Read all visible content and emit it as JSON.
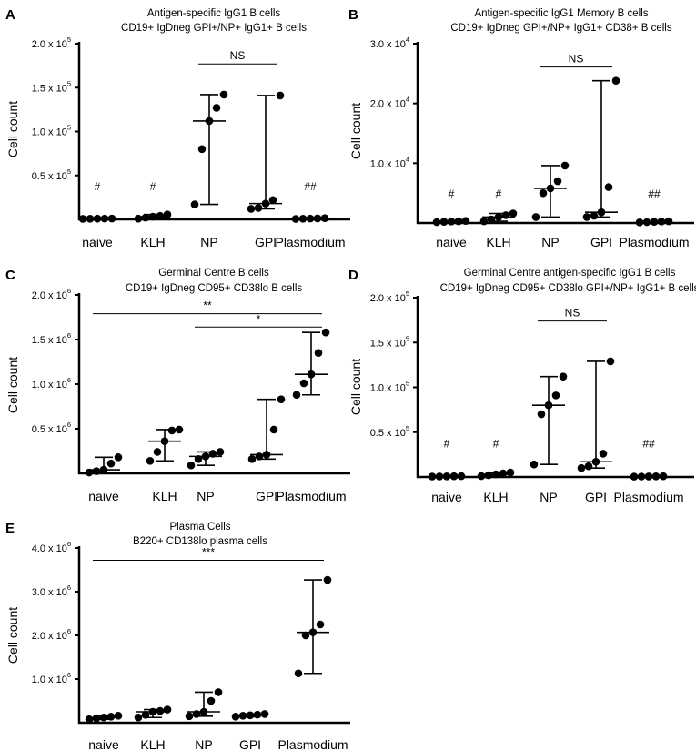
{
  "chart_data": [
    {
      "panel": "A",
      "type": "scatter",
      "title": [
        "Antigen-specific IgG1 B cells",
        "CD19+ IgDneg GPI+/NP+ IgG1+ B cells"
      ],
      "ylabel": "Cell count",
      "categories": [
        "naive",
        "KLH",
        "NP",
        "GPI",
        "Plasmodium"
      ],
      "ylim": [
        0,
        200000
      ],
      "yticks": [
        {
          "value": 50000,
          "mantissa": "0.5 x 10",
          "exp": "5"
        },
        {
          "value": 100000,
          "mantissa": "1.0 x 10",
          "exp": "5"
        },
        {
          "value": 150000,
          "mantissa": "1.5 x 10",
          "exp": "5"
        },
        {
          "value": 200000,
          "mantissa": "2.0 x 10",
          "exp": "5"
        }
      ],
      "points": [
        [
          600,
          700,
          800,
          900,
          1000
        ],
        [
          800,
          2000,
          3000,
          4000,
          5500
        ],
        [
          17000,
          80000,
          112000,
          127000,
          142000
        ],
        [
          12000,
          13000,
          18000,
          22000,
          141000
        ],
        [
          500,
          700,
          900,
          1100,
          1400
        ]
      ],
      "annotations": [
        {
          "category": 0,
          "text": "#",
          "y": 33000
        },
        {
          "category": 1,
          "text": "#",
          "y": 33000
        },
        {
          "category": 4,
          "text": "##",
          "y": 33000
        }
      ],
      "significance": [
        {
          "from": 2,
          "to": 3,
          "text": "NS",
          "y": 177000
        }
      ]
    },
    {
      "panel": "B",
      "type": "scatter",
      "title": [
        "Antigen-specific IgG1 Memory B cells",
        "CD19+ IgDneg GPI+/NP+ IgG1+ CD38+ B cells"
      ],
      "ylabel": "Cell count",
      "categories": [
        "naive",
        "KLH",
        "NP",
        "GPI",
        "Plasmodium"
      ],
      "ylim": [
        0,
        30000
      ],
      "yticks": [
        {
          "value": 10000,
          "mantissa": "1.0 x 10",
          "exp": "4"
        },
        {
          "value": 20000,
          "mantissa": "2.0 x 10",
          "exp": "4"
        },
        {
          "value": 30000,
          "mantissa": "3.0 x 10",
          "exp": "4"
        }
      ],
      "points": [
        [
          150,
          200,
          250,
          300,
          350
        ],
        [
          300,
          600,
          1000,
          1300,
          1600
        ],
        [
          1000,
          5000,
          5800,
          7000,
          9600
        ],
        [
          1000,
          1200,
          1800,
          6000,
          23800
        ],
        [
          100,
          150,
          200,
          250,
          300
        ]
      ],
      "annotations": [
        {
          "category": 0,
          "text": "#",
          "y": 4300
        },
        {
          "category": 1,
          "text": "#",
          "y": 4300
        },
        {
          "category": 4,
          "text": "##",
          "y": 4300
        }
      ],
      "significance": [
        {
          "from": 2,
          "to": 3,
          "text": "NS",
          "y": 26100
        }
      ]
    },
    {
      "panel": "C",
      "type": "scatter",
      "title": [
        "Germinal Centre B cells",
        "CD19+ IgDneg CD95+ CD38lo B cells"
      ],
      "ylabel": "Cell count",
      "categories": [
        "naive",
        "KLH",
        "NP",
        "GPI",
        "Plasmodium"
      ],
      "ylim": [
        0,
        2000000
      ],
      "yticks": [
        {
          "value": 500000,
          "mantissa": "0.5 x 10",
          "exp": "6"
        },
        {
          "value": 1000000,
          "mantissa": "1.0 x 10",
          "exp": "6"
        },
        {
          "value": 1500000,
          "mantissa": "1.5 x 10",
          "exp": "6"
        },
        {
          "value": 2000000,
          "mantissa": "2.0 x 10",
          "exp": "6"
        }
      ],
      "points": [
        [
          10000,
          25000,
          40000,
          110000,
          180000
        ],
        [
          140000,
          240000,
          360000,
          480000,
          490000
        ],
        [
          90000,
          160000,
          190000,
          220000,
          240000
        ],
        [
          160000,
          190000,
          210000,
          490000,
          830000
        ],
        [
          880000,
          1010000,
          1110000,
          1350000,
          1580000
        ]
      ],
      "annotations": [],
      "significance": [
        {
          "from": 0,
          "to": 4,
          "text": "**",
          "y": 1790000
        },
        {
          "from": 2,
          "to": 4,
          "text": "*",
          "y": 1640000
        }
      ]
    },
    {
      "panel": "D",
      "type": "scatter",
      "title": [
        "Germinal Centre antigen-specific IgG1 B cells",
        "CD19+ IgDneg CD95+ CD38lo GPI+/NP+ IgG1+ B cells"
      ],
      "ylabel": "Cell count",
      "categories": [
        "naive",
        "KLH",
        "NP",
        "GPI",
        "Plasmodium"
      ],
      "ylim": [
        0,
        200000
      ],
      "yticks": [
        {
          "value": 50000,
          "mantissa": "0.5 x 10",
          "exp": "5"
        },
        {
          "value": 100000,
          "mantissa": "1.0 x 10",
          "exp": "5"
        },
        {
          "value": 150000,
          "mantissa": "1.5 x 10",
          "exp": "5"
        },
        {
          "value": 200000,
          "mantissa": "2.0 x 10",
          "exp": "5"
        }
      ],
      "points": [
        [
          500,
          600,
          700,
          800,
          900
        ],
        [
          1000,
          2000,
          3000,
          4000,
          5000
        ],
        [
          14000,
          70000,
          80000,
          91000,
          112000
        ],
        [
          10000,
          12000,
          17000,
          26000,
          129000
        ],
        [
          400,
          500,
          600,
          700,
          800
        ]
      ],
      "annotations": [
        {
          "category": 0,
          "text": "#",
          "y": 33000
        },
        {
          "category": 1,
          "text": "#",
          "y": 33000
        },
        {
          "category": 4,
          "text": "##",
          "y": 33000
        }
      ],
      "significance": [
        {
          "from": 2,
          "to": 3,
          "text": "NS",
          "y": 174000
        }
      ]
    },
    {
      "panel": "E",
      "type": "scatter",
      "title": [
        "Plasma Cells",
        "B220+ CD138lo plasma cells"
      ],
      "ylabel": "Cell count",
      "categories": [
        "naive",
        "KLH",
        "NP",
        "GPI",
        "Plasmodium"
      ],
      "ylim": [
        0,
        4000000
      ],
      "yticks": [
        {
          "value": 1000000,
          "mantissa": "1.0 x 10",
          "exp": "6"
        },
        {
          "value": 2000000,
          "mantissa": "2.0 x 10",
          "exp": "6"
        },
        {
          "value": 3000000,
          "mantissa": "3.0 x 10",
          "exp": "6"
        },
        {
          "value": 4000000,
          "mantissa": "4.0 x 10",
          "exp": "6"
        }
      ],
      "points": [
        [
          80000,
          100000,
          120000,
          140000,
          160000
        ],
        [
          120000,
          180000,
          250000,
          270000,
          300000
        ],
        [
          150000,
          200000,
          250000,
          500000,
          700000
        ],
        [
          140000,
          160000,
          170000,
          185000,
          200000
        ],
        [
          1130000,
          2000000,
          2070000,
          2250000,
          3270000
        ]
      ],
      "annotations": [],
      "significance": [
        {
          "from": 0,
          "to": 4,
          "text": "***",
          "y": 3720000
        }
      ]
    }
  ]
}
